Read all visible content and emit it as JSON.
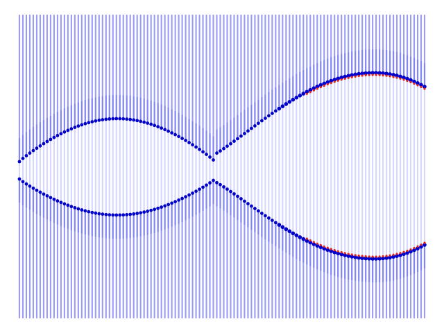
{
  "figure": {
    "kind": "particle-density-field",
    "background_color": "#ffffff",
    "column_color": "#5a5ef0",
    "column_light_color": "#c8caff",
    "boundary_color": "#0000cc",
    "peak_color": "#e0231e"
  }
}
